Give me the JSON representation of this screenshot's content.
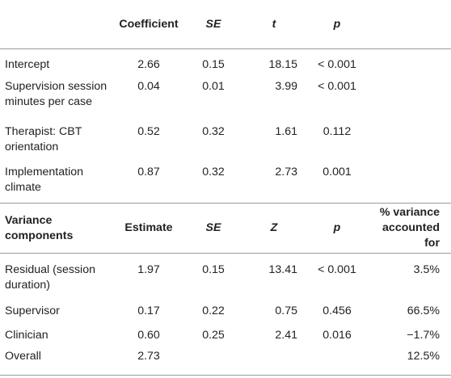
{
  "table1": {
    "headers": [
      "",
      "Coefficient",
      "SE",
      "t",
      "p"
    ],
    "rows": [
      {
        "label": "Intercept",
        "coef": "2.66",
        "se": "0.15",
        "t": "18.15",
        "p": "< 0.001"
      },
      {
        "label": "Supervision session minutes per case",
        "coef": "0.04",
        "se": "0.01",
        "t": "3.99",
        "p": "< 0.001"
      },
      {
        "label": "Therapist: CBT orientation",
        "coef": "0.52",
        "se": "0.32",
        "t": "1.61",
        "p": "0.112"
      },
      {
        "label": "Implementation climate",
        "coef": "0.87",
        "se": "0.32",
        "t": "2.73",
        "p": "0.001"
      }
    ]
  },
  "table2": {
    "headers": [
      "Variance components",
      "Estimate",
      "SE",
      "Z",
      "p",
      "% variance accounted for"
    ],
    "rows": [
      {
        "label": "Residual (session duration)",
        "est": "1.97",
        "se": "0.15",
        "z": "13.41",
        "p": "< 0.001",
        "pct": "3.5%"
      },
      {
        "label": "Supervisor",
        "est": "0.17",
        "se": "0.22",
        "z": "0.75",
        "p": "0.456",
        "pct": "66.5%"
      },
      {
        "label": "Clinician",
        "est": "0.60",
        "se": "0.25",
        "z": "2.41",
        "p": "0.016",
        "pct": "−1.7%"
      },
      {
        "label": "Overall",
        "est": "2.73",
        "se": "",
        "z": "",
        "p": "",
        "pct": "12.5%"
      }
    ]
  }
}
